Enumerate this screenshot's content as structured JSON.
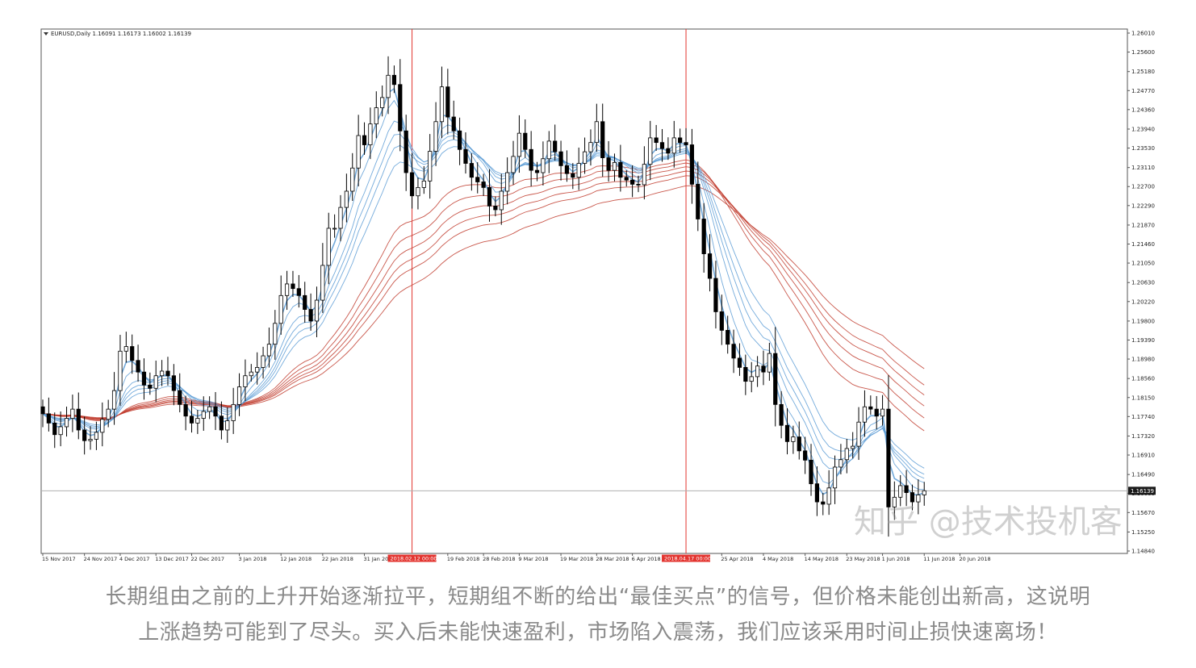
{
  "chart_data": {
    "type": "candlestick",
    "symbol_header": "EURUSD,Daily  1.16091 1.16173 1.16002 1.16139",
    "ohlc": {
      "open": 1.16091,
      "high": 1.16173,
      "low": 1.16002,
      "close": 1.16139
    },
    "current_price": 1.16139,
    "current_price_label": "1.16139",
    "ylim": [
      1.1484,
      1.2601
    ],
    "y_ticks": [
      "1.26010",
      "1.25600",
      "1.25180",
      "1.24770",
      "1.24360",
      "1.23940",
      "1.23530",
      "1.23110",
      "1.22700",
      "1.22290",
      "1.21870",
      "1.21460",
      "1.21050",
      "1.20630",
      "1.20220",
      "1.19800",
      "1.19390",
      "1.18980",
      "1.18560",
      "1.18150",
      "1.17740",
      "1.17320",
      "1.16910",
      "1.16490",
      "1.16080",
      "1.15670",
      "1.15250",
      "1.14840"
    ],
    "x_ticks": [
      "15 Nov 2017",
      "24 Nov 2017",
      "4 Dec 2017",
      "13 Dec 2017",
      "22 Dec 2017",
      "3 Jan 2018",
      "12 Jan 2018",
      "22 Jan 2018",
      "31 Jan 2018",
      "19 Feb 2018",
      "28 Feb 2018",
      "9 Mar 2018",
      "19 Mar 2018",
      "28 Mar 2018",
      "6 Apr 2018",
      "25 Apr 2018",
      "4 May 2018",
      "14 May 2018",
      "23 May 2018",
      "1 Jun 2018",
      "11 Jun 2018",
      "20 Jun 2018"
    ],
    "markers": [
      {
        "label": "2018.02.12 00:00",
        "bar_index": 62,
        "color": "#e3342f"
      },
      {
        "label": "2018.04.17 00:00",
        "bar_index": 108,
        "color": "#e3342f"
      }
    ],
    "close_series": [
      1.178,
      1.176,
      1.1735,
      1.1752,
      1.177,
      1.179,
      1.1745,
      1.1722,
      1.1725,
      1.174,
      1.1768,
      1.179,
      1.183,
      1.1915,
      1.1925,
      1.1895,
      1.187,
      1.1842,
      1.1835,
      1.1862,
      1.1872,
      1.1862,
      1.183,
      1.18,
      1.1775,
      1.176,
      1.177,
      1.1785,
      1.1795,
      1.1775,
      1.1745,
      1.1765,
      1.18,
      1.1838,
      1.1862,
      1.187,
      1.188,
      1.1905,
      1.193,
      1.1975,
      1.2035,
      1.206,
      1.205,
      1.2035,
      1.2005,
      1.198,
      1.2025,
      1.21,
      1.218,
      1.218,
      1.2225,
      1.226,
      1.231,
      1.238,
      1.236,
      1.2405,
      1.244,
      1.2462,
      1.251,
      1.249,
      1.239,
      1.23,
      1.225,
      1.2268,
      1.2282,
      1.2346,
      1.241,
      1.2485,
      1.242,
      1.239,
      1.235,
      1.232,
      1.229,
      1.228,
      1.2268,
      1.2228,
      1.222,
      1.226,
      1.23,
      1.2335,
      1.2385,
      1.235,
      1.2305,
      1.23,
      1.233,
      1.2368,
      1.2345,
      1.2315,
      1.2298,
      1.229,
      1.232,
      1.2345,
      1.2365,
      1.241,
      1.2332,
      1.2305,
      1.2322,
      1.229,
      1.2284,
      1.2275,
      1.2274,
      1.2318,
      1.2375,
      1.2365,
      1.2352,
      1.2342,
      1.2375,
      1.2365,
      1.236,
      1.2275,
      1.22,
      1.2125,
      1.2072,
      1.2,
      1.196,
      1.193,
      1.19,
      1.188,
      1.185,
      1.186,
      1.1883,
      1.187,
      1.191,
      1.18,
      1.1755,
      1.172,
      1.173,
      1.17,
      1.168,
      1.1629,
      1.159,
      1.1585,
      1.162,
      1.1665,
      1.1681,
      1.1705,
      1.171,
      1.1762,
      1.1795,
      1.179,
      1.1775,
      1.179,
      1.1579,
      1.16,
      1.1625,
      1.161,
      1.159,
      1.1605,
      1.1614
    ]
  },
  "caption": {
    "line1": "长期组由之前的上升开始逐渐拉平，短期组不断的给出“最佳买点”的信号，但价格未能创出新高，这说明",
    "line2": "上涨趋势可能到了尽头。买入后未能快速盈利，市场陷入震荡，我们应该采用时间止损快速离场！"
  },
  "watermark": "知乎 @技术投机客",
  "colors": {
    "short_group": "#5b9bd5",
    "long_group": "#c0392b",
    "marker": "#e3342f",
    "bull": "#ffffff",
    "bear": "#000000"
  }
}
